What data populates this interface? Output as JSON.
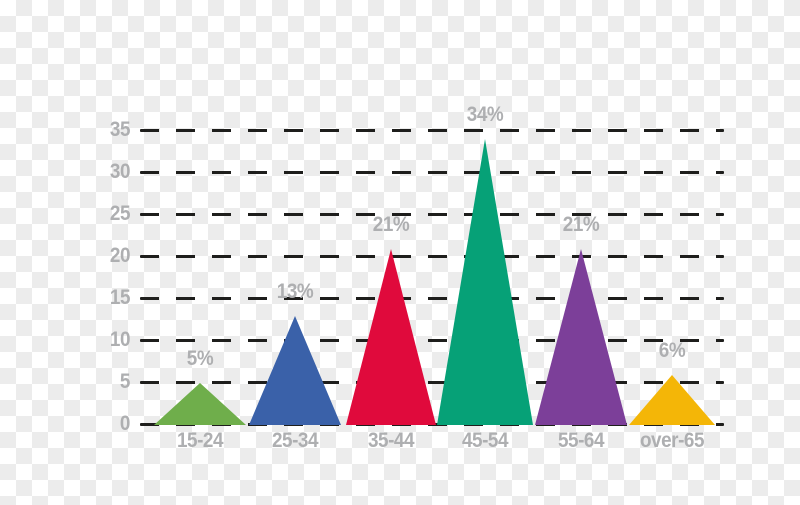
{
  "chart_data": {
    "type": "bar",
    "variant": "triangle-peak-bars",
    "title": "",
    "xlabel": "",
    "ylabel": "",
    "categories": [
      "15-24",
      "25-34",
      "35-44",
      "45-54",
      "55-64",
      "over-65"
    ],
    "values": [
      5,
      13,
      21,
      34,
      21,
      6
    ],
    "data_labels": [
      "5%",
      "13%",
      "21%",
      "34%",
      "21%",
      "6%"
    ],
    "colors": [
      "#6fae4b",
      "#3a61a9",
      "#e00a3c",
      "#06a177",
      "#7c3f99",
      "#f4b607"
    ],
    "ylim": [
      0,
      35
    ],
    "yticks": [
      35,
      30,
      25,
      20,
      15,
      10,
      5,
      0
    ],
    "grid": "horizontal-dashed",
    "gridline_color": "#1e1e1c",
    "label_color": "#aeafb1",
    "legend": "none",
    "background": "transparent-checkerboard"
  }
}
